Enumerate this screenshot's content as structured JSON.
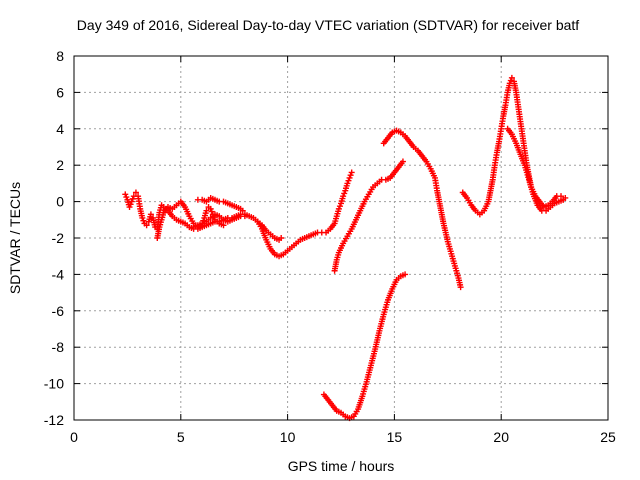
{
  "chart_data": {
    "type": "scatter",
    "title": "Day 349 of 2016, Sidereal Day-to-day VTEC variation (SDTVAR) for receiver batf",
    "xlabel": "GPS time / hours",
    "ylabel": "SDTVAR / TECUs",
    "xlim": [
      0,
      25
    ],
    "ylim": [
      -12,
      8
    ],
    "xticks": [
      "0",
      "5",
      "10",
      "15",
      "20",
      "25"
    ],
    "yticks": [
      "8",
      "6",
      "4",
      "2",
      "0",
      "-2",
      "-4",
      "-6",
      "-8",
      "-10",
      "-12"
    ],
    "grid": true,
    "marker": "+",
    "color": "#ff0000",
    "series": [
      {
        "values": [
          [
            2.4,
            0.4
          ],
          [
            2.5,
            0.1
          ],
          [
            2.6,
            -0.3
          ],
          [
            2.7,
            0.0
          ],
          [
            2.8,
            0.3
          ],
          [
            2.9,
            0.5
          ],
          [
            3.0,
            0.3
          ],
          [
            3.1,
            -0.4
          ],
          [
            3.2,
            -0.9
          ],
          [
            3.3,
            -1.2
          ],
          [
            3.4,
            -1.3
          ],
          [
            3.5,
            -1.1
          ],
          [
            3.6,
            -0.7
          ],
          [
            3.7,
            -0.9
          ],
          [
            3.8,
            -1.4
          ],
          [
            3.9,
            -1.5
          ],
          [
            4.0,
            -0.6
          ],
          [
            4.1,
            -0.2
          ],
          [
            4.2,
            -0.3
          ],
          [
            4.4,
            -0.5
          ],
          [
            4.6,
            -0.8
          ],
          [
            4.8,
            -1.0
          ],
          [
            5.0,
            -1.1
          ],
          [
            5.2,
            -1.2
          ],
          [
            5.4,
            -1.4
          ],
          [
            5.6,
            -1.5
          ],
          [
            5.8,
            -1.5
          ],
          [
            6.0,
            -1.4
          ],
          [
            6.2,
            -1.3
          ],
          [
            6.4,
            -1.2
          ],
          [
            6.6,
            -1.1
          ],
          [
            6.8,
            -1.1
          ],
          [
            7.0,
            -1.0
          ],
          [
            7.2,
            -0.9
          ],
          [
            7.4,
            -0.9
          ],
          [
            7.6,
            -0.8
          ],
          [
            7.8,
            -0.7
          ],
          [
            8.0,
            -0.7
          ],
          [
            8.2,
            -0.8
          ],
          [
            8.4,
            -0.9
          ],
          [
            8.6,
            -1.1
          ],
          [
            8.8,
            -1.3
          ],
          [
            9.0,
            -1.6
          ],
          [
            9.2,
            -1.8
          ],
          [
            9.4,
            -2.0
          ],
          [
            9.6,
            -2.1
          ],
          [
            9.7,
            -2.0
          ]
        ]
      },
      {
        "values": [
          [
            3.9,
            -2.0
          ],
          [
            4.0,
            -1.4
          ],
          [
            4.2,
            -0.6
          ],
          [
            4.4,
            -0.3
          ],
          [
            4.6,
            -0.4
          ],
          [
            4.8,
            -0.2
          ],
          [
            5.0,
            0.0
          ],
          [
            5.2,
            -0.3
          ],
          [
            5.4,
            -0.8
          ],
          [
            5.6,
            -1.2
          ],
          [
            5.8,
            -1.4
          ],
          [
            6.0,
            -1.3
          ],
          [
            6.2,
            -1.1
          ],
          [
            6.4,
            -0.9
          ],
          [
            6.6,
            -0.7
          ],
          [
            6.8,
            -0.8
          ],
          [
            7.0,
            -1.0
          ],
          [
            7.2,
            -1.1
          ],
          [
            7.4,
            -1.0
          ],
          [
            7.6,
            -0.9
          ],
          [
            7.8,
            -0.8
          ],
          [
            8.0,
            -0.8
          ]
        ]
      },
      {
        "values": [
          [
            5.8,
            0.1
          ],
          [
            6.0,
            0.1
          ],
          [
            6.2,
            0.0
          ],
          [
            6.4,
            0.2
          ],
          [
            6.6,
            0.1
          ],
          [
            6.8,
            0.0
          ],
          [
            7.0,
            0.0
          ],
          [
            7.2,
            -0.1
          ],
          [
            7.4,
            -0.2
          ],
          [
            7.6,
            -0.3
          ],
          [
            7.8,
            -0.4
          ],
          [
            7.9,
            -0.5
          ]
        ]
      },
      {
        "values": [
          [
            5.6,
            -1.4
          ],
          [
            5.8,
            -1.3
          ],
          [
            6.0,
            -1.2
          ],
          [
            6.1,
            -0.9
          ],
          [
            6.2,
            -0.5
          ],
          [
            6.3,
            -0.3
          ],
          [
            6.4,
            -0.4
          ],
          [
            6.5,
            -0.7
          ],
          [
            6.6,
            -1.0
          ],
          [
            6.8,
            -1.2
          ],
          [
            7.0,
            -1.3
          ]
        ]
      },
      {
        "values": [
          [
            8.6,
            -1.1
          ],
          [
            8.8,
            -1.5
          ],
          [
            9.0,
            -2.1
          ],
          [
            9.2,
            -2.6
          ],
          [
            9.4,
            -2.9
          ],
          [
            9.6,
            -3.0
          ],
          [
            9.8,
            -2.9
          ],
          [
            10.0,
            -2.7
          ],
          [
            10.2,
            -2.5
          ],
          [
            10.4,
            -2.3
          ],
          [
            10.6,
            -2.1
          ],
          [
            10.8,
            -2.0
          ],
          [
            11.0,
            -1.9
          ],
          [
            11.2,
            -1.8
          ],
          [
            11.4,
            -1.7
          ],
          [
            11.6,
            -1.7
          ],
          [
            11.8,
            -1.7
          ],
          [
            12.0,
            -1.5
          ],
          [
            12.2,
            -1.2
          ],
          [
            12.3,
            -0.8
          ],
          [
            12.4,
            -0.4
          ],
          [
            12.5,
            -0.1
          ],
          [
            12.6,
            0.3
          ],
          [
            12.7,
            0.6
          ],
          [
            12.8,
            1.0
          ],
          [
            12.9,
            1.3
          ],
          [
            13.0,
            1.6
          ]
        ]
      },
      {
        "values": [
          [
            12.2,
            -3.8
          ],
          [
            12.3,
            -3.2
          ],
          [
            12.4,
            -2.8
          ],
          [
            12.6,
            -2.3
          ],
          [
            12.8,
            -1.9
          ],
          [
            13.0,
            -1.5
          ],
          [
            13.2,
            -1.0
          ],
          [
            13.4,
            -0.5
          ],
          [
            13.6,
            0.0
          ],
          [
            13.8,
            0.4
          ],
          [
            14.0,
            0.8
          ],
          [
            14.2,
            1.0
          ],
          [
            14.4,
            1.2
          ],
          [
            14.6,
            1.2
          ],
          [
            14.8,
            1.3
          ],
          [
            15.0,
            1.6
          ],
          [
            15.2,
            1.9
          ],
          [
            15.4,
            2.2
          ]
        ]
      },
      {
        "values": [
          [
            14.5,
            3.2
          ],
          [
            14.7,
            3.5
          ],
          [
            14.9,
            3.8
          ],
          [
            15.1,
            3.9
          ],
          [
            15.3,
            3.8
          ],
          [
            15.5,
            3.6
          ],
          [
            15.7,
            3.3
          ],
          [
            15.9,
            3.0
          ],
          [
            16.1,
            2.8
          ],
          [
            16.3,
            2.5
          ],
          [
            16.5,
            2.2
          ],
          [
            16.7,
            1.8
          ],
          [
            16.9,
            1.3
          ],
          [
            17.0,
            0.6
          ],
          [
            17.1,
            0.0
          ],
          [
            17.2,
            -0.6
          ],
          [
            17.3,
            -1.2
          ],
          [
            17.4,
            -1.7
          ],
          [
            17.5,
            -2.2
          ],
          [
            17.6,
            -2.6
          ],
          [
            17.7,
            -3.0
          ],
          [
            17.8,
            -3.4
          ],
          [
            17.9,
            -3.8
          ],
          [
            18.0,
            -4.2
          ],
          [
            18.1,
            -4.7
          ]
        ]
      },
      {
        "values": [
          [
            11.7,
            -10.6
          ],
          [
            11.9,
            -10.9
          ],
          [
            12.1,
            -11.2
          ],
          [
            12.3,
            -11.5
          ],
          [
            12.5,
            -11.6
          ],
          [
            12.7,
            -11.8
          ],
          [
            12.9,
            -11.9
          ],
          [
            13.1,
            -11.8
          ],
          [
            13.3,
            -11.4
          ],
          [
            13.5,
            -10.7
          ],
          [
            13.7,
            -9.9
          ],
          [
            13.9,
            -9.0
          ],
          [
            14.1,
            -8.1
          ],
          [
            14.3,
            -7.1
          ],
          [
            14.5,
            -6.2
          ],
          [
            14.7,
            -5.4
          ],
          [
            14.9,
            -4.8
          ],
          [
            15.1,
            -4.3
          ],
          [
            15.3,
            -4.1
          ],
          [
            15.5,
            -4.0
          ]
        ]
      },
      {
        "values": [
          [
            18.2,
            0.5
          ],
          [
            18.4,
            0.2
          ],
          [
            18.6,
            -0.2
          ],
          [
            18.8,
            -0.5
          ],
          [
            19.0,
            -0.7
          ],
          [
            19.2,
            -0.5
          ],
          [
            19.4,
            0.0
          ],
          [
            19.5,
            0.6
          ],
          [
            19.6,
            1.2
          ],
          [
            19.7,
            2.0
          ],
          [
            19.8,
            2.7
          ],
          [
            19.9,
            3.3
          ],
          [
            20.0,
            4.0
          ],
          [
            20.1,
            4.7
          ],
          [
            20.2,
            5.3
          ],
          [
            20.3,
            6.0
          ],
          [
            20.4,
            6.5
          ],
          [
            20.5,
            6.8
          ],
          [
            20.6,
            6.6
          ],
          [
            20.7,
            6.0
          ],
          [
            20.8,
            5.2
          ],
          [
            20.9,
            4.4
          ],
          [
            21.0,
            3.6
          ],
          [
            21.1,
            2.8
          ],
          [
            21.2,
            2.0
          ],
          [
            21.3,
            1.4
          ],
          [
            21.4,
            0.8
          ],
          [
            21.6,
            0.3
          ],
          [
            21.8,
            0.0
          ],
          [
            22.0,
            -0.3
          ],
          [
            22.2,
            -0.2
          ],
          [
            22.4,
            0.0
          ],
          [
            22.6,
            0.3
          ],
          [
            22.8,
            0.3
          ],
          [
            22.9,
            0.1
          ]
        ]
      },
      {
        "values": [
          [
            20.3,
            4.0
          ],
          [
            20.5,
            3.7
          ],
          [
            20.7,
            3.2
          ],
          [
            20.9,
            2.6
          ],
          [
            21.1,
            2.0
          ],
          [
            21.3,
            1.2
          ],
          [
            21.5,
            0.4
          ],
          [
            21.7,
            -0.2
          ],
          [
            21.9,
            -0.5
          ],
          [
            22.1,
            -0.5
          ],
          [
            22.3,
            -0.3
          ],
          [
            22.5,
            -0.1
          ],
          [
            22.7,
            0.0
          ],
          [
            22.9,
            0.1
          ],
          [
            23.0,
            0.2
          ]
        ]
      }
    ]
  }
}
